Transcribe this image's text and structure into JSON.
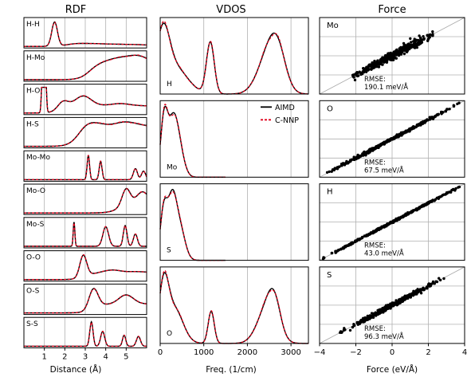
{
  "chart_data": [
    {
      "type": "line",
      "title": "RDF",
      "xlabel": "Distance (Å)",
      "ylabel": "",
      "xlim": [
        0,
        6
      ],
      "x_ticks": [
        "1",
        "2",
        "3",
        "4",
        "5"
      ],
      "grid": true,
      "colors": {
        "AIMD": "#000000",
        "C-NNP": "#e0001b"
      },
      "panels": [
        {
          "label": "H-H",
          "peaks": [
            [
              1.5,
              1.0,
              0.14
            ],
            [
              2.5,
              0.08,
              0.5
            ],
            [
              3.5,
              0.06,
              0.5
            ],
            [
              4.5,
              0.04,
              0.5
            ],
            [
              5.5,
              0.03,
              0.5
            ]
          ],
          "ramp_start": 2.0,
          "ramp_level": 0.04
        },
        {
          "label": "H-Mo",
          "peaks": [
            [
              4.6,
              0.06,
              0.6
            ],
            [
              5.6,
              0.08,
              0.5
            ]
          ],
          "ramp_start": 2.8,
          "ramp_level": 0.2
        },
        {
          "label": "H-O",
          "peaks": [
            [
              0.98,
              8.0,
              0.06
            ],
            [
              1.9,
              0.25,
              0.25
            ],
            [
              2.9,
              0.35,
              0.4
            ],
            [
              4.7,
              0.08,
              0.5
            ]
          ],
          "ramp_start": 1.4,
          "ramp_level": 0.25
        },
        {
          "label": "H-S",
          "peaks": [
            [
              3.2,
              0.06,
              0.5
            ],
            [
              5.0,
              0.05,
              0.5
            ]
          ],
          "ramp_start": 2.3,
          "ramp_level": 0.25
        },
        {
          "label": "Mo-Mo",
          "peaks": [
            [
              3.15,
              1.0,
              0.06
            ],
            [
              3.75,
              0.75,
              0.07
            ],
            [
              5.45,
              0.45,
              0.1
            ],
            [
              5.85,
              0.35,
              0.1
            ]
          ],
          "ramp_start": 9,
          "ramp_level": 0
        },
        {
          "label": "Mo-O",
          "peaks": [
            [
              5.0,
              0.4,
              0.2
            ],
            [
              5.8,
              0.3,
              0.3
            ]
          ],
          "ramp_start": 4.2,
          "ramp_level": 0.2
        },
        {
          "label": "Mo-S",
          "peaks": [
            [
              2.45,
              1.0,
              0.04
            ],
            [
              4.0,
              0.8,
              0.14
            ],
            [
              4.95,
              0.85,
              0.09
            ],
            [
              5.45,
              0.5,
              0.1
            ]
          ],
          "ramp_start": 9,
          "ramp_level": 0
        },
        {
          "label": "O-O",
          "peaks": [
            [
              2.9,
              0.95,
              0.17
            ],
            [
              4.3,
              0.12,
              0.4
            ],
            [
              5.5,
              0.05,
              0.5
            ]
          ],
          "ramp_start": 2.6,
          "ramp_level": 0.3
        },
        {
          "label": "O-S",
          "peaks": [
            [
              3.4,
              0.55,
              0.22
            ],
            [
              5.0,
              0.25,
              0.35
            ]
          ],
          "ramp_start": 3.0,
          "ramp_level": 0.25
        },
        {
          "label": "S-S",
          "peaks": [
            [
              3.3,
              1.0,
              0.08
            ],
            [
              3.85,
              0.6,
              0.1
            ],
            [
              4.9,
              0.45,
              0.08
            ],
            [
              5.6,
              0.4,
              0.1
            ]
          ],
          "ramp_start": 9,
          "ramp_level": 0
        }
      ]
    },
    {
      "type": "line",
      "title": "VDOS",
      "xlabel": "Freq. (1/cm)",
      "ylabel": "",
      "xlim": [
        0,
        3400
      ],
      "x_ticks": [
        "0",
        "1000",
        "2000",
        "3000"
      ],
      "grid": true,
      "legend": {
        "position": "top-right",
        "entries": [
          {
            "name": "AIMD",
            "style": "solid",
            "color": "#000000"
          },
          {
            "name": "C-NNP",
            "style": "dashed",
            "color": "#e0001b"
          }
        ]
      },
      "panels": [
        {
          "label": "H",
          "peaks": [
            [
              60,
              0.95,
              150
            ],
            [
              320,
              0.5,
              300
            ],
            [
              1150,
              0.95,
              90
            ],
            [
              2500,
              0.75,
              250
            ],
            [
              2700,
              0.5,
              180
            ]
          ]
        },
        {
          "label": "Mo",
          "peaks": [
            [
              90,
              1.0,
              80
            ],
            [
              280,
              0.8,
              110
            ],
            [
              420,
              0.5,
              120
            ]
          ]
        },
        {
          "label": "S",
          "peaks": [
            [
              80,
              0.85,
              80
            ],
            [
              270,
              1.0,
              100
            ],
            [
              450,
              0.55,
              120
            ]
          ]
        },
        {
          "label": "O",
          "peaks": [
            [
              80,
              0.9,
              110
            ],
            [
              320,
              0.6,
              200
            ],
            [
              1170,
              0.55,
              70
            ],
            [
              2450,
              0.6,
              220
            ],
            [
              2620,
              0.45,
              140
            ]
          ]
        }
      ]
    },
    {
      "type": "scatter",
      "title": "Force",
      "xlabel": "Force (eV/Å)",
      "ylabel": "",
      "xlim": [
        -4,
        4
      ],
      "ylim": [
        -4,
        4
      ],
      "x_ticks": [
        "−4",
        "−2",
        "0",
        "2",
        "4"
      ],
      "grid": true,
      "diagonal": true,
      "panels": [
        {
          "label": "Mo",
          "rmse": "RMSE:",
          "rmse_value": "190.1 meV/Å",
          "range": 2.3,
          "spread": 0.18,
          "n": 380
        },
        {
          "label": "O",
          "rmse": "RMSE:",
          "rmse_value": "67.5 meV/Å",
          "range": 3.7,
          "spread": 0.06,
          "n": 380
        },
        {
          "label": "H",
          "rmse": "RMSE:",
          "rmse_value": "43.0 meV/Å",
          "range": 3.8,
          "spread": 0.04,
          "n": 380
        },
        {
          "label": "S",
          "rmse": "RMSE:",
          "rmse_value": "96.3 meV/Å",
          "range": 2.9,
          "spread": 0.1,
          "n": 380
        }
      ]
    }
  ]
}
